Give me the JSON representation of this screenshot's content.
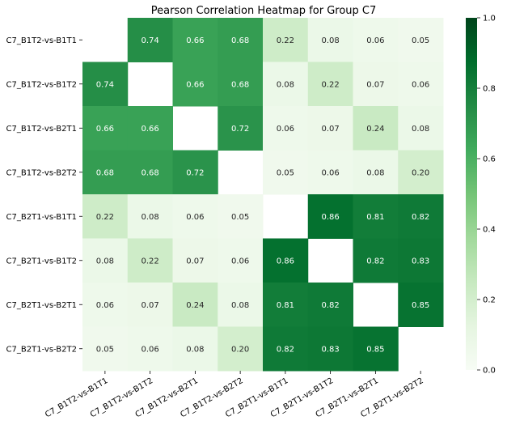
{
  "chart_data": {
    "type": "heatmap",
    "title": "Pearson Correlation Heatmap for Group C7",
    "row_labels": [
      "C7_B1T2-vs-B1T1",
      "C7_B1T2-vs-B1T2",
      "C7_B1T2-vs-B2T1",
      "C7_B1T2-vs-B2T2",
      "C7_B2T1-vs-B1T1",
      "C7_B2T1-vs-B1T2",
      "C7_B2T1-vs-B2T1",
      "C7_B2T1-vs-B2T2"
    ],
    "col_labels": [
      "C7_B1T2-vs-B1T1",
      "C7_B1T2-vs-B1T2",
      "C7_B1T2-vs-B2T1",
      "C7_B1T2-vs-B2T2",
      "C7_B2T1-vs-B1T1",
      "C7_B2T1-vs-B1T2",
      "C7_B2T1-vs-B2T1",
      "C7_B2T1-vs-B2T2"
    ],
    "values": [
      [
        null,
        0.74,
        0.66,
        0.68,
        0.22,
        0.08,
        0.06,
        0.05
      ],
      [
        0.74,
        null,
        0.66,
        0.68,
        0.08,
        0.22,
        0.07,
        0.06
      ],
      [
        0.66,
        0.66,
        null,
        0.72,
        0.06,
        0.07,
        0.24,
        0.08
      ],
      [
        0.68,
        0.68,
        0.72,
        null,
        0.05,
        0.06,
        0.08,
        0.2
      ],
      [
        0.22,
        0.08,
        0.06,
        0.05,
        null,
        0.86,
        0.81,
        0.82
      ],
      [
        0.08,
        0.22,
        0.07,
        0.06,
        0.86,
        null,
        0.82,
        0.83
      ],
      [
        0.06,
        0.07,
        0.24,
        0.08,
        0.81,
        0.82,
        null,
        0.85
      ],
      [
        0.05,
        0.06,
        0.08,
        0.2,
        0.82,
        0.83,
        0.85,
        null
      ]
    ],
    "value_format": "0.00",
    "colorbar": {
      "range": [
        0.0,
        1.0
      ],
      "ticks": [
        "0.0",
        "0.2",
        "0.4",
        "0.6",
        "0.8",
        "1.0"
      ],
      "colormap": "Greens",
      "low_color": "#f7fcf5",
      "high_color": "#00441b"
    }
  }
}
